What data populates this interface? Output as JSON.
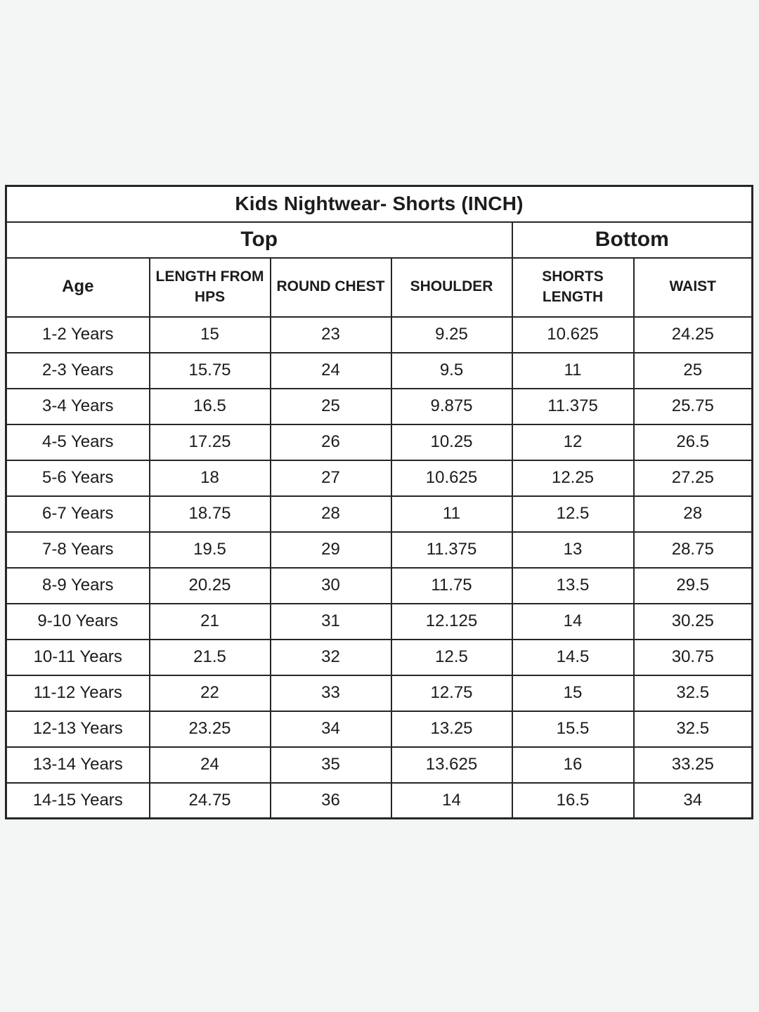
{
  "page": {
    "background_color": "#f4f6f5",
    "cell_background_color": "#ffffff",
    "border_color": "#262626",
    "text_color": "#1c1c1c"
  },
  "table": {
    "title": "Kids Nightwear- Shorts (INCH)",
    "group_headers": [
      {
        "label": "Top",
        "colspan": 4
      },
      {
        "label": "Bottom",
        "colspan": 2
      }
    ],
    "columns": [
      "Age",
      "LENGTH FROM HPS",
      "ROUND CHEST",
      "SHOULDER",
      "SHORTS LENGTH",
      "WAIST"
    ],
    "rows": [
      [
        "1-2 Years",
        "15",
        "23",
        "9.25",
        "10.625",
        "24.25"
      ],
      [
        "2-3 Years",
        "15.75",
        "24",
        "9.5",
        "11",
        "25"
      ],
      [
        "3-4 Years",
        "16.5",
        "25",
        "9.875",
        "11.375",
        "25.75"
      ],
      [
        "4-5 Years",
        "17.25",
        "26",
        "10.25",
        "12",
        "26.5"
      ],
      [
        "5-6 Years",
        "18",
        "27",
        "10.625",
        "12.25",
        "27.25"
      ],
      [
        "6-7 Years",
        "18.75",
        "28",
        "11",
        "12.5",
        "28"
      ],
      [
        "7-8 Years",
        "19.5",
        "29",
        "11.375",
        "13",
        "28.75"
      ],
      [
        "8-9 Years",
        "20.25",
        "30",
        "11.75",
        "13.5",
        "29.5"
      ],
      [
        "9-10 Years",
        "21",
        "31",
        "12.125",
        "14",
        "30.25"
      ],
      [
        "10-11 Years",
        "21.5",
        "32",
        "12.5",
        "14.5",
        "30.75"
      ],
      [
        "11-12 Years",
        "22",
        "33",
        "12.75",
        "15",
        "32.5"
      ],
      [
        "12-13 Years",
        "23.25",
        "34",
        "13.25",
        "15.5",
        "32.5"
      ],
      [
        "13-14 Years",
        "24",
        "35",
        "13.625",
        "16",
        "33.25"
      ],
      [
        "14-15 Years",
        "24.75",
        "36",
        "14",
        "16.5",
        "34"
      ]
    ]
  },
  "chart_data": {
    "type": "table",
    "title": "Kids Nightwear- Shorts (INCH)",
    "column_groups": [
      {
        "label": "Top",
        "columns": [
          "Age",
          "LENGTH FROM HPS",
          "ROUND CHEST",
          "SHOULDER"
        ]
      },
      {
        "label": "Bottom",
        "columns": [
          "SHORTS LENGTH",
          "WAIST"
        ]
      }
    ],
    "columns": [
      "Age",
      "LENGTH FROM HPS",
      "ROUND CHEST",
      "SHOULDER",
      "SHORTS LENGTH",
      "WAIST"
    ],
    "rows": [
      [
        "1-2 Years",
        15,
        23,
        9.25,
        10.625,
        24.25
      ],
      [
        "2-3 Years",
        15.75,
        24,
        9.5,
        11,
        25
      ],
      [
        "3-4 Years",
        16.5,
        25,
        9.875,
        11.375,
        25.75
      ],
      [
        "4-5 Years",
        17.25,
        26,
        10.25,
        12,
        26.5
      ],
      [
        "5-6 Years",
        18,
        27,
        10.625,
        12.25,
        27.25
      ],
      [
        "6-7 Years",
        18.75,
        28,
        11,
        12.5,
        28
      ],
      [
        "7-8 Years",
        19.5,
        29,
        11.375,
        13,
        28.75
      ],
      [
        "8-9 Years",
        20.25,
        30,
        11.75,
        13.5,
        29.5
      ],
      [
        "9-10 Years",
        21,
        31,
        12.125,
        14,
        30.25
      ],
      [
        "10-11 Years",
        21.5,
        32,
        12.5,
        14.5,
        30.75
      ],
      [
        "11-12 Years",
        22,
        33,
        12.75,
        15,
        32.5
      ],
      [
        "12-13 Years",
        23.25,
        34,
        13.25,
        15.5,
        32.5
      ],
      [
        "13-14 Years",
        24,
        35,
        13.625,
        16,
        33.25
      ],
      [
        "14-15 Years",
        24.75,
        36,
        14,
        16.5,
        34
      ]
    ],
    "units": "inches"
  }
}
